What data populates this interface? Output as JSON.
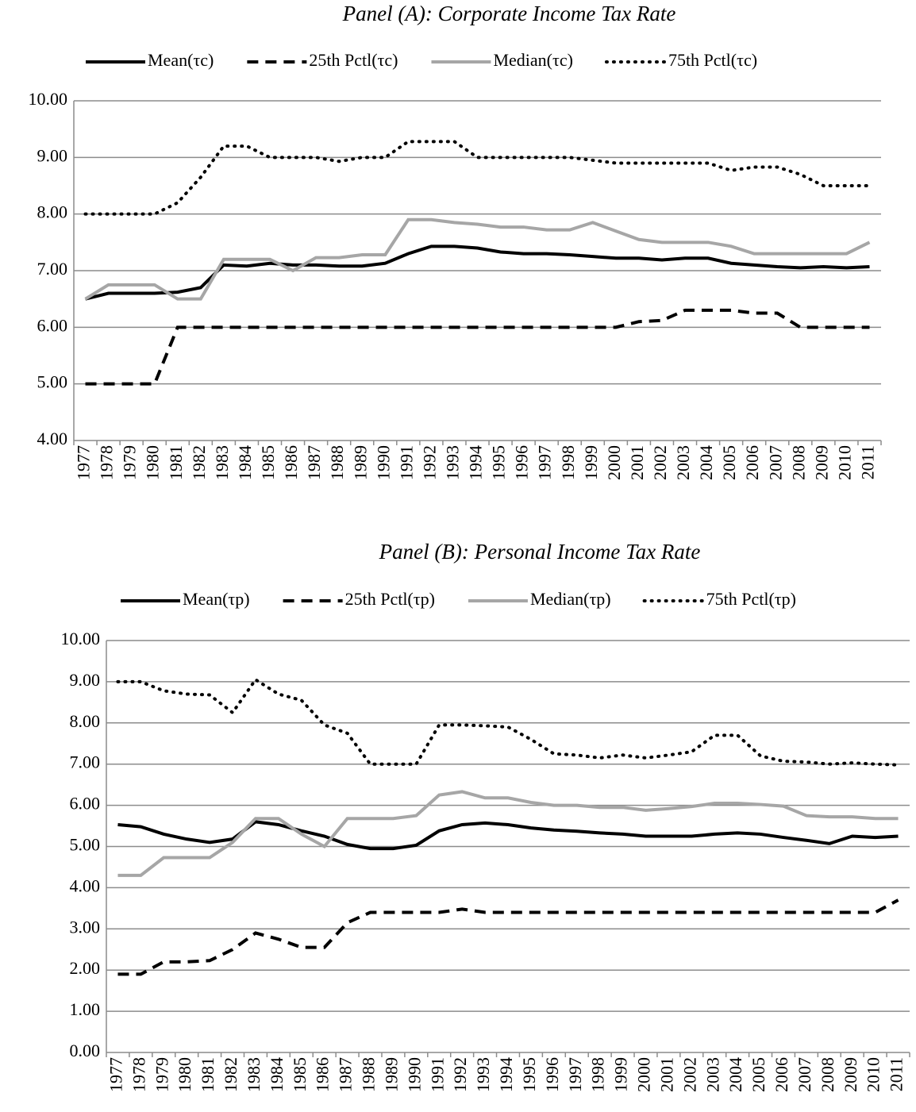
{
  "chart_data": [
    {
      "type": "line",
      "title": "Panel (A): Corporate Income Tax Rate",
      "categories": [
        "1977",
        "1978",
        "1979",
        "1980",
        "1981",
        "1982",
        "1983",
        "1984",
        "1985",
        "1986",
        "1987",
        "1988",
        "1989",
        "1990",
        "1991",
        "1992",
        "1993",
        "1994",
        "1995",
        "1996",
        "1997",
        "1998",
        "1999",
        "2000",
        "2001",
        "2002",
        "2003",
        "2004",
        "2005",
        "2006",
        "2007",
        "2008",
        "2009",
        "2010",
        "2011"
      ],
      "ylim": [
        4,
        10
      ],
      "yticks": [
        {
          "value": 4,
          "label": "4.00"
        },
        {
          "value": 5,
          "label": "5.00"
        },
        {
          "value": 6,
          "label": "6.00"
        },
        {
          "value": 7,
          "label": "7.00"
        },
        {
          "value": 8,
          "label": "8.00"
        },
        {
          "value": 9,
          "label": "9.00"
        },
        {
          "value": 10,
          "label": "10.00"
        }
      ],
      "grid": true,
      "legend": "top",
      "series": [
        {
          "name": "Mean(τc)",
          "color": "#000000",
          "style": "solid",
          "values": [
            6.5,
            6.6,
            6.6,
            6.6,
            6.62,
            6.7,
            7.1,
            7.08,
            7.13,
            7.1,
            7.1,
            7.08,
            7.08,
            7.13,
            7.3,
            7.43,
            7.43,
            7.4,
            7.33,
            7.3,
            7.3,
            7.28,
            7.25,
            7.22,
            7.22,
            7.19,
            7.22,
            7.22,
            7.13,
            7.1,
            7.07,
            7.05,
            7.07,
            7.05,
            7.07
          ]
        },
        {
          "name": "25th Pctl(τc)",
          "color": "#000000",
          "style": "dashed",
          "values": [
            5,
            5,
            5,
            5,
            6,
            6,
            6,
            6,
            6,
            6,
            6,
            6,
            6,
            6,
            6,
            6,
            6,
            6,
            6,
            6,
            6,
            6,
            6,
            6,
            6.1,
            6.12,
            6.3,
            6.3,
            6.3,
            6.25,
            6.25,
            6,
            6,
            6,
            6
          ]
        },
        {
          "name": "Median(τc)",
          "color": "#a6a6a6",
          "style": "solid",
          "values": [
            6.5,
            6.75,
            6.75,
            6.75,
            6.5,
            6.5,
            7.2,
            7.2,
            7.2,
            7.0,
            7.23,
            7.23,
            7.28,
            7.28,
            7.9,
            7.9,
            7.85,
            7.82,
            7.77,
            7.77,
            7.72,
            7.72,
            7.85,
            7.7,
            7.55,
            7.5,
            7.5,
            7.5,
            7.43,
            7.3,
            7.3,
            7.3,
            7.3,
            7.3,
            7.5
          ]
        },
        {
          "name": "75th Pctl(τc)",
          "color": "#000000",
          "style": "dotted",
          "values": [
            8,
            8,
            8,
            8,
            8.2,
            8.65,
            9.2,
            9.2,
            9.0,
            9.0,
            9.0,
            8.93,
            9.0,
            9.0,
            9.28,
            9.28,
            9.28,
            9.0,
            9.0,
            9.0,
            9.0,
            9.0,
            8.95,
            8.9,
            8.9,
            8.9,
            8.9,
            8.9,
            8.77,
            8.83,
            8.83,
            8.7,
            8.5,
            8.5,
            8.5
          ]
        }
      ]
    },
    {
      "type": "line",
      "title": "Panel (B): Personal Income Tax Rate",
      "categories": [
        "1977",
        "1978",
        "1979",
        "1980",
        "1981",
        "1982",
        "1983",
        "1984",
        "1985",
        "1986",
        "1987",
        "1988",
        "1989",
        "1990",
        "1991",
        "1992",
        "1993",
        "1994",
        "1995",
        "1996",
        "1997",
        "1998",
        "1999",
        "2000",
        "2001",
        "2002",
        "2003",
        "2004",
        "2005",
        "2006",
        "2007",
        "2008",
        "2009",
        "2010",
        "2011"
      ],
      "ylim": [
        0,
        10
      ],
      "yticks": [
        {
          "value": 0,
          "label": "0.00"
        },
        {
          "value": 1,
          "label": "1.00"
        },
        {
          "value": 2,
          "label": "2.00"
        },
        {
          "value": 3,
          "label": "3.00"
        },
        {
          "value": 4,
          "label": "4.00"
        },
        {
          "value": 5,
          "label": "5.00"
        },
        {
          "value": 6,
          "label": "6.00"
        },
        {
          "value": 7,
          "label": "7.00"
        },
        {
          "value": 8,
          "label": "8.00"
        },
        {
          "value": 9,
          "label": "9.00"
        },
        {
          "value": 10,
          "label": "10.00"
        }
      ],
      "grid": true,
      "legend": "top",
      "series": [
        {
          "name": "Mean(τp)",
          "color": "#000000",
          "style": "solid",
          "values": [
            5.53,
            5.48,
            5.3,
            5.18,
            5.1,
            5.18,
            5.6,
            5.53,
            5.38,
            5.25,
            5.05,
            4.95,
            4.95,
            5.03,
            5.38,
            5.53,
            5.57,
            5.53,
            5.45,
            5.4,
            5.37,
            5.33,
            5.3,
            5.25,
            5.25,
            5.25,
            5.3,
            5.33,
            5.3,
            5.22,
            5.15,
            5.07,
            5.25,
            5.22,
            5.25
          ]
        },
        {
          "name": "25th Pctl(τp)",
          "color": "#000000",
          "style": "dashed",
          "values": [
            1.9,
            1.9,
            2.2,
            2.2,
            2.23,
            2.5,
            2.9,
            2.75,
            2.55,
            2.55,
            3.15,
            3.4,
            3.4,
            3.4,
            3.4,
            3.48,
            3.4,
            3.4,
            3.4,
            3.4,
            3.4,
            3.4,
            3.4,
            3.4,
            3.4,
            3.4,
            3.4,
            3.4,
            3.4,
            3.4,
            3.4,
            3.4,
            3.4,
            3.4,
            3.7
          ]
        },
        {
          "name": "Median(τp)",
          "color": "#a6a6a6",
          "style": "solid",
          "values": [
            4.3,
            4.3,
            4.73,
            4.73,
            4.73,
            5.1,
            5.68,
            5.68,
            5.3,
            5.0,
            5.68,
            5.68,
            5.68,
            5.75,
            6.25,
            6.33,
            6.18,
            6.18,
            6.07,
            6.0,
            6.0,
            5.95,
            5.95,
            5.88,
            5.92,
            5.97,
            6.05,
            6.05,
            6.02,
            5.98,
            5.75,
            5.72,
            5.72,
            5.68,
            5.68
          ]
        },
        {
          "name": "75th Pctl(τp)",
          "color": "#000000",
          "style": "dotted",
          "values": [
            9.0,
            9.0,
            8.78,
            8.7,
            8.68,
            8.25,
            9.05,
            8.7,
            8.55,
            7.95,
            7.75,
            7.0,
            7.0,
            7.0,
            7.95,
            7.95,
            7.93,
            7.9,
            7.6,
            7.25,
            7.22,
            7.15,
            7.22,
            7.15,
            7.22,
            7.3,
            7.7,
            7.7,
            7.2,
            7.07,
            7.05,
            7.0,
            7.03,
            7.0,
            6.98
          ]
        }
      ]
    }
  ]
}
